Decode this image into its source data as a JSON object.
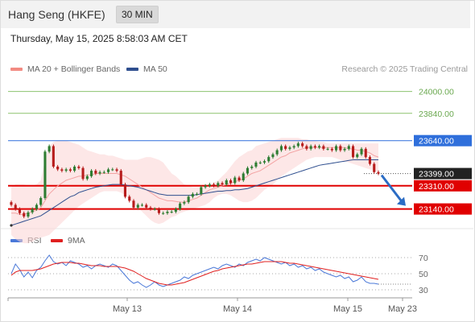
{
  "header": {
    "title": "Hang Seng (HKFE)",
    "timeframe": "30 MIN"
  },
  "datetime": "Thursday, May 15, 2025 8:58:03 AM CET",
  "legend": {
    "bollinger": {
      "label": "MA 20 + Bollinger Bands",
      "color": "#f28b82"
    },
    "ma50": {
      "label": "MA 50",
      "color": "#2f4f8f"
    },
    "credit": "Research © 2025 Trading Central"
  },
  "rsi_legend": {
    "rsi": {
      "label": "RSI",
      "color": "#4a78d8"
    },
    "ma9": {
      "label": "9MA",
      "color": "#e02020"
    }
  },
  "colors": {
    "up": "#2e7d32",
    "down": "#b71c1c",
    "support": "#e00000",
    "resistance": "#2f6fdb",
    "target": "#8dc26f",
    "arrow": "#2b6cc4"
  },
  "chart_data": [
    {
      "type": "line",
      "title": "",
      "ylim": [
        23020,
        24080
      ],
      "x_ticks": [
        "May 13",
        "May 14",
        "May 15",
        "May 23"
      ],
      "price_levels": [
        {
          "value": 24000,
          "label": "24000.00",
          "kind": "target"
        },
        {
          "value": 23840,
          "label": "23840.00",
          "kind": "target"
        },
        {
          "value": 23640,
          "label": "23640.00",
          "kind": "resistance"
        },
        {
          "value": 23399,
          "label": "23399.00",
          "kind": "current"
        },
        {
          "value": 23310,
          "label": "23310.00",
          "kind": "support"
        },
        {
          "value": 23140,
          "label": "23140.00",
          "kind": "support"
        }
      ],
      "close": [
        23170,
        23140,
        23110,
        23085,
        23115,
        23140,
        23170,
        23220,
        23560,
        23600,
        23450,
        23430,
        23420,
        23430,
        23420,
        23450,
        23440,
        23360,
        23380,
        23420,
        23400,
        23410,
        23410,
        23430,
        23430,
        23420,
        23320,
        23230,
        23200,
        23150,
        23170,
        23170,
        23150,
        23140,
        23140,
        23110,
        23110,
        23120,
        23120,
        23140,
        23180,
        23190,
        23230,
        23250,
        23250,
        23300,
        23310,
        23320,
        23310,
        23330,
        23320,
        23350,
        23330,
        23370,
        23350,
        23400,
        23440,
        23450,
        23480,
        23480,
        23490,
        23520,
        23540,
        23570,
        23600,
        23580,
        23590,
        23600,
        23620,
        23600,
        23580,
        23600,
        23590,
        23600,
        23580,
        23580,
        23570,
        23600,
        23570,
        23580,
        23600,
        23520,
        23540,
        23580,
        23520,
        23470,
        23410,
        23399
      ],
      "ma20": [
        23110,
        23110,
        23100,
        23100,
        23110,
        23120,
        23130,
        23150,
        23200,
        23250,
        23280,
        23310,
        23330,
        23350,
        23360,
        23370,
        23380,
        23380,
        23390,
        23390,
        23400,
        23400,
        23400,
        23400,
        23400,
        23400,
        23390,
        23380,
        23360,
        23340,
        23320,
        23300,
        23280,
        23260,
        23240,
        23220,
        23210,
        23200,
        23200,
        23195,
        23190,
        23190,
        23200,
        23210,
        23220,
        23240,
        23260,
        23280,
        23290,
        23300,
        23310,
        23320,
        23330,
        23340,
        23350,
        23360,
        23380,
        23400,
        23410,
        23420,
        23440,
        23460,
        23480,
        23500,
        23520,
        23530,
        23550,
        23560,
        23570,
        23580,
        23590,
        23590,
        23590,
        23590,
        23590,
        23590,
        23590,
        23590,
        23590,
        23590,
        23580,
        23580,
        23570,
        23570,
        23560,
        23550,
        23530,
        23520
      ],
      "bb_upper": [
        23300,
        23320,
        23320,
        23320,
        23310,
        23310,
        23320,
        23350,
        23500,
        23600,
        23630,
        23640,
        23640,
        23640,
        23630,
        23620,
        23610,
        23590,
        23570,
        23560,
        23550,
        23540,
        23540,
        23530,
        23530,
        23520,
        23510,
        23500,
        23500,
        23500,
        23500,
        23510,
        23520,
        23520,
        23510,
        23500,
        23480,
        23440,
        23400,
        23380,
        23350,
        23320,
        23310,
        23300,
        23300,
        23300,
        23310,
        23320,
        23330,
        23350,
        23380,
        23410,
        23450,
        23490,
        23520,
        23540,
        23560,
        23570,
        23600,
        23610,
        23620,
        23630,
        23640,
        23650,
        23660,
        23660,
        23660,
        23660,
        23660,
        23650,
        23650,
        23640,
        23640,
        23630,
        23630,
        23620,
        23620,
        23620,
        23620,
        23620,
        23620,
        23620,
        23620,
        23620,
        23620,
        23620,
        23620,
        23620
      ],
      "bb_lower": [
        22950,
        22920,
        22900,
        22890,
        22890,
        22900,
        22920,
        22930,
        22940,
        22950,
        22980,
        23010,
        23040,
        23070,
        23100,
        23130,
        23160,
        23180,
        23200,
        23220,
        23240,
        23260,
        23270,
        23270,
        23270,
        23270,
        23260,
        23240,
        23210,
        23180,
        23150,
        23120,
        23090,
        23060,
        23040,
        23030,
        23040,
        23060,
        23080,
        23090,
        23110,
        23120,
        23130,
        23140,
        23150,
        23160,
        23170,
        23190,
        23220,
        23240,
        23250,
        23250,
        23240,
        23220,
        23200,
        23190,
        23190,
        23200,
        23220,
        23250,
        23280,
        23300,
        23320,
        23350,
        23380,
        23400,
        23420,
        23440,
        23460,
        23480,
        23500,
        23510,
        23520,
        23520,
        23520,
        23520,
        23520,
        23510,
        23500,
        23490,
        23480,
        23470,
        23460,
        23450,
        23440,
        23430,
        23420,
        23410
      ],
      "ma50": [
        23020,
        23030,
        23040,
        23050,
        23060,
        23070,
        23080,
        23090,
        23110,
        23130,
        23150,
        23170,
        23190,
        23210,
        23230,
        23240,
        23260,
        23270,
        23280,
        23290,
        23300,
        23305,
        23310,
        23315,
        23320,
        23320,
        23320,
        23315,
        23310,
        23305,
        23300,
        23290,
        23280,
        23270,
        23260,
        23250,
        23245,
        23240,
        23240,
        23240,
        23240,
        23240,
        23240,
        23240,
        23245,
        23250,
        23255,
        23260,
        23265,
        23270,
        23270,
        23275,
        23275,
        23280,
        23280,
        23285,
        23290,
        23300,
        23310,
        23320,
        23330,
        23340,
        23350,
        23360,
        23370,
        23380,
        23390,
        23400,
        23410,
        23420,
        23430,
        23440,
        23450,
        23460,
        23465,
        23470,
        23475,
        23480,
        23485,
        23490,
        23495,
        23500,
        23500,
        23500,
        23500,
        23500,
        23500,
        23500
      ],
      "projection": {
        "from": 23399,
        "to": 23140
      }
    },
    {
      "type": "line",
      "title": "",
      "ylim": [
        20,
        80
      ],
      "levels": [
        {
          "value": 70,
          "label": "70"
        },
        {
          "value": 50,
          "label": "50"
        },
        {
          "value": 30,
          "label": "30"
        }
      ],
      "series": [
        {
          "name": "RSI",
          "values": [
            50,
            62,
            55,
            46,
            52,
            45,
            54,
            58,
            66,
            73,
            65,
            62,
            64,
            60,
            66,
            64,
            62,
            58,
            60,
            56,
            60,
            62,
            60,
            58,
            62,
            60,
            54,
            48,
            42,
            38,
            40,
            36,
            33,
            36,
            40,
            36,
            34,
            36,
            38,
            40,
            42,
            46,
            44,
            48,
            50,
            52,
            54,
            56,
            58,
            56,
            60,
            62,
            60,
            58,
            62,
            60,
            64,
            66,
            68,
            66,
            70,
            68,
            66,
            64,
            62,
            64,
            60,
            62,
            58,
            60,
            56,
            58,
            54,
            56,
            52,
            50,
            48,
            46,
            48,
            44,
            46,
            40,
            42,
            46,
            40,
            38,
            38,
            37
          ]
        },
        {
          "name": "9MA",
          "values": [
            48,
            52,
            54,
            54,
            54,
            54,
            55,
            56,
            58,
            60,
            62,
            63,
            64,
            64,
            64,
            63,
            63,
            62,
            61,
            60,
            60,
            60,
            59,
            59,
            59,
            59,
            58,
            57,
            55,
            53,
            50,
            47,
            44,
            42,
            40,
            38,
            37,
            36,
            36,
            37,
            38,
            39,
            41,
            43,
            45,
            47,
            49,
            51,
            53,
            54,
            56,
            57,
            58,
            59,
            60,
            61,
            62,
            62,
            63,
            64,
            65,
            65,
            65,
            65,
            65,
            64,
            63,
            63,
            62,
            61,
            60,
            59,
            58,
            57,
            56,
            55,
            54,
            53,
            52,
            51,
            50,
            49,
            48,
            47,
            46,
            45,
            44,
            43
          ]
        }
      ]
    }
  ]
}
